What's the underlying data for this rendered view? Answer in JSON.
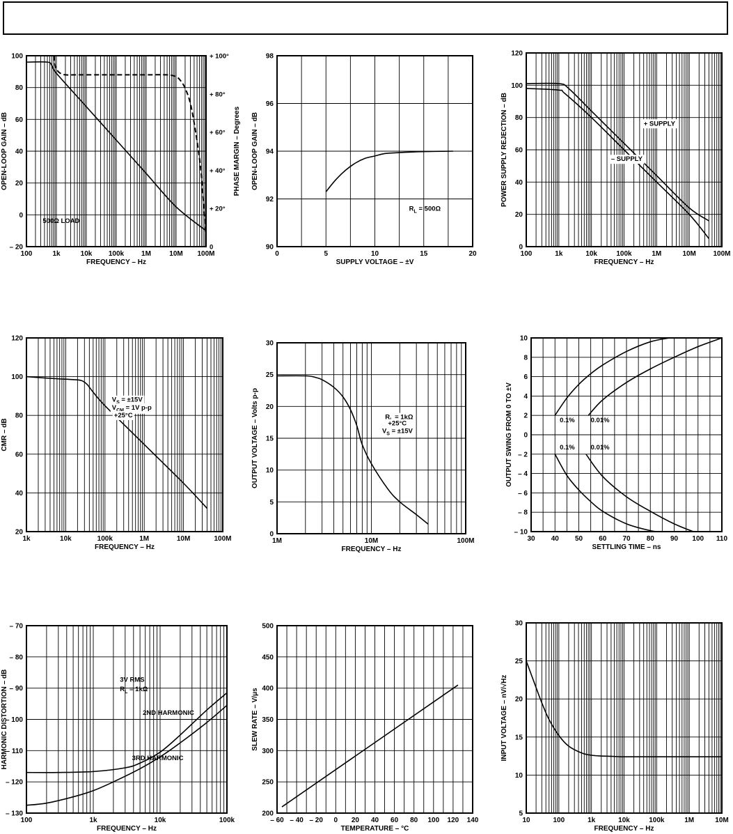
{
  "chart_data": [
    {
      "type": "line",
      "xscale": "log",
      "xlim": [
        100,
        100000000
      ],
      "ylim": [
        -20,
        100
      ],
      "y2lim": [
        0,
        100
      ],
      "xticks": [
        {
          "v": 100,
          "t": "100"
        },
        {
          "v": 1000,
          "t": "1k"
        },
        {
          "v": 10000,
          "t": "10k"
        },
        {
          "v": 100000,
          "t": "100k"
        },
        {
          "v": 1000000,
          "t": "1M"
        },
        {
          "v": 10000000,
          "t": "10M"
        },
        {
          "v": 100000000,
          "t": "100M"
        }
      ],
      "yticks": [
        {
          "v": -20,
          "t": "– 20"
        },
        {
          "v": 0,
          "t": "0"
        },
        {
          "v": 20,
          "t": "20"
        },
        {
          "v": 40,
          "t": "40"
        },
        {
          "v": 60,
          "t": "60"
        },
        {
          "v": 80,
          "t": "80"
        },
        {
          "v": 100,
          "t": "100"
        }
      ],
      "y2ticks": [
        {
          "v": 0,
          "t": "0"
        },
        {
          "v": 20,
          "t": "+ 20°"
        },
        {
          "v": 40,
          "t": "+ 40°"
        },
        {
          "v": 60,
          "t": "+ 60°"
        },
        {
          "v": 80,
          "t": "+ 80°"
        },
        {
          "v": 100,
          "t": "+ 100°"
        }
      ],
      "xlabel": "FREQUENCY – Hz",
      "ylabel": "OPEN-LOOP GAIN – dB",
      "y2label": "PHASE MARGIN – Degrees",
      "series": [
        {
          "style": "solid",
          "x": [
            100,
            500,
            700,
            1000,
            10000,
            100000,
            1000000,
            10000000,
            100000000
          ],
          "y": [
            96,
            96,
            94,
            89,
            68,
            47,
            26,
            5,
            -10
          ]
        },
        {
          "style": "dashed",
          "axis": "y2",
          "x": [
            820,
            900,
            1000,
            1300,
            2000,
            5000,
            100000,
            1000000,
            5000000,
            10000000,
            14000000,
            20000000,
            30000000,
            45000000,
            65000000,
            80000000,
            100000000
          ],
          "y": [
            100,
            95,
            93,
            91,
            90,
            90,
            90,
            90,
            90,
            89,
            87,
            83,
            75,
            60,
            42,
            25,
            7
          ]
        }
      ],
      "annotations": [
        {
          "text": "500Ω LOAD",
          "x": 350,
          "y": -5
        }
      ]
    },
    {
      "type": "line",
      "xscale": "linear",
      "xlim": [
        0,
        20
      ],
      "ylim": [
        90,
        98
      ],
      "xticks": [
        {
          "v": 0,
          "t": "0"
        },
        {
          "v": 5,
          "t": "5"
        },
        {
          "v": 10,
          "t": "10"
        },
        {
          "v": 15,
          "t": "15"
        },
        {
          "v": 20,
          "t": "20"
        }
      ],
      "yticks": [
        {
          "v": 90,
          "t": "90"
        },
        {
          "v": 92,
          "t": "92"
        },
        {
          "v": 94,
          "t": "94"
        },
        {
          "v": 96,
          "t": "96"
        },
        {
          "v": 98,
          "t": "98"
        }
      ],
      "xlabel": "SUPPLY VOLTAGE – ±V",
      "ylabel": "OPEN-LOOP GAIN – dB",
      "series": [
        {
          "style": "solid",
          "x": [
            5,
            6,
            7,
            8,
            9,
            10,
            11,
            12,
            14,
            16,
            18
          ],
          "y": [
            92.3,
            92.8,
            93.2,
            93.5,
            93.7,
            93.8,
            93.9,
            93.93,
            93.97,
            93.99,
            94.0
          ]
        }
      ],
      "annotations": [
        {
          "text": "R",
          "sub": "L",
          "after": " = 500Ω",
          "x": 13.5,
          "y": 91.5
        }
      ]
    },
    {
      "type": "line",
      "xscale": "log",
      "xlim": [
        100,
        100000000
      ],
      "ylim": [
        0,
        120
      ],
      "xticks": [
        {
          "v": 100,
          "t": "100"
        },
        {
          "v": 1000,
          "t": "1k"
        },
        {
          "v": 10000,
          "t": "10k"
        },
        {
          "v": 100000,
          "t": "100k"
        },
        {
          "v": 1000000,
          "t": "1M"
        },
        {
          "v": 10000000,
          "t": "10M"
        },
        {
          "v": 100000000,
          "t": "100M"
        }
      ],
      "yticks": [
        {
          "v": 0,
          "t": "0"
        },
        {
          "v": 20,
          "t": "20"
        },
        {
          "v": 40,
          "t": "40"
        },
        {
          "v": 60,
          "t": "60"
        },
        {
          "v": 80,
          "t": "80"
        },
        {
          "v": 100,
          "t": "100"
        },
        {
          "v": 120,
          "t": "120"
        }
      ],
      "xlabel": "FREQUENCY – Hz",
      "ylabel": "POWER SUPPLY REJECTION – dB",
      "series": [
        {
          "style": "solid",
          "x": [
            100,
            1000,
            2000,
            10000,
            100000,
            1000000,
            10000000,
            40000000
          ],
          "y": [
            101,
            101,
            98,
            84,
            64,
            44,
            24,
            16
          ]
        },
        {
          "style": "solid",
          "x": [
            100,
            1000,
            1500,
            10000,
            100000,
            1000000,
            10000000,
            40000000
          ],
          "y": [
            98,
            97,
            95,
            80,
            60,
            40,
            20,
            5
          ]
        }
      ],
      "annotations": [
        {
          "text": "+ SUPPLY",
          "x": 400000,
          "y": 75,
          "bg": true
        },
        {
          "text": "– SUPPLY",
          "x": 40000,
          "y": 53,
          "bg": true
        }
      ]
    },
    {
      "type": "line",
      "xscale": "log",
      "xlim": [
        1000,
        100000000
      ],
      "ylim": [
        20,
        120
      ],
      "xticks": [
        {
          "v": 1000,
          "t": "1k"
        },
        {
          "v": 10000,
          "t": "10k"
        },
        {
          "v": 100000,
          "t": "100k"
        },
        {
          "v": 1000000,
          "t": "1M"
        },
        {
          "v": 10000000,
          "t": "10M"
        },
        {
          "v": 100000000,
          "t": "100M"
        }
      ],
      "yticks": [
        {
          "v": 20,
          "t": "20"
        },
        {
          "v": 40,
          "t": "40"
        },
        {
          "v": 60,
          "t": "60"
        },
        {
          "v": 80,
          "t": "80"
        },
        {
          "v": 100,
          "t": "100"
        },
        {
          "v": 120,
          "t": "120"
        }
      ],
      "xlabel": "FREQUENCY – Hz",
      "ylabel": "CMR – dB",
      "series": [
        {
          "style": "solid",
          "x": [
            1000,
            5000,
            15000,
            25000,
            35000,
            50000,
            100000,
            1000000,
            10000000,
            40000000
          ],
          "y": [
            100,
            99,
            98.5,
            98,
            96,
            92,
            85,
            65,
            45,
            32
          ]
        }
      ],
      "annotations": [
        {
          "text": "V",
          "sub": "S",
          "after": " = ±15V",
          "x": 150000,
          "y": 87,
          "bg": true
        },
        {
          "text": "V",
          "sub": "CM",
          "after": " = 1V p-p",
          "x": 150000,
          "y": 83,
          "bg": true
        },
        {
          "text": "+25°C",
          "x": 170000,
          "y": 79,
          "bg": true
        }
      ]
    },
    {
      "type": "line",
      "xscale": "log",
      "xlim": [
        1000000,
        100000000
      ],
      "ylim": [
        0,
        30
      ],
      "xticks": [
        {
          "v": 1000000,
          "t": "1M"
        },
        {
          "v": 10000000,
          "t": "10M"
        },
        {
          "v": 100000000,
          "t": "100M"
        }
      ],
      "yticks": [
        {
          "v": 0,
          "t": "0"
        },
        {
          "v": 5,
          "t": "5"
        },
        {
          "v": 10,
          "t": "10"
        },
        {
          "v": 15,
          "t": "15"
        },
        {
          "v": 20,
          "t": "20"
        },
        {
          "v": 25,
          "t": "25"
        },
        {
          "v": 30,
          "t": "30"
        }
      ],
      "xlabel": "FREQUENCY – Hz",
      "ylabel": "OUTPUT VOLTAGE – Volts p-p",
      "series": [
        {
          "style": "solid",
          "x": [
            1000000,
            2000000,
            2500000,
            3000000,
            4000000,
            5000000,
            6000000,
            7000000,
            8000000,
            10000000,
            15000000,
            20000000,
            30000000,
            40000000
          ],
          "y": [
            24.8,
            24.8,
            24.6,
            24.2,
            23,
            21.5,
            19.5,
            17,
            14,
            11,
            7,
            5,
            3,
            1.5
          ]
        }
      ],
      "annotations": [
        {
          "text": "R",
          "sub": "L",
          "after": " = 1kΩ",
          "x": 14000000,
          "y": 18,
          "bg": true
        },
        {
          "text": "+25°C",
          "x": 15000000,
          "y": 17,
          "bg": true
        },
        {
          "text": "V",
          "sub": "S",
          "after": " = ±15V",
          "x": 13000000,
          "y": 15.8,
          "bg": true
        }
      ]
    },
    {
      "type": "line",
      "xscale": "linear",
      "xlim": [
        30,
        110
      ],
      "ylim": [
        -10,
        10
      ],
      "xticks": [
        {
          "v": 30,
          "t": "30"
        },
        {
          "v": 40,
          "t": "40"
        },
        {
          "v": 50,
          "t": "50"
        },
        {
          "v": 60,
          "t": "60"
        },
        {
          "v": 70,
          "t": "70"
        },
        {
          "v": 80,
          "t": "80"
        },
        {
          "v": 90,
          "t": "90"
        },
        {
          "v": 100,
          "t": "100"
        },
        {
          "v": 110,
          "t": "110"
        }
      ],
      "yticks": [
        {
          "v": -10,
          "t": "– 10"
        },
        {
          "v": -8,
          "t": "– 8"
        },
        {
          "v": -6,
          "t": "– 6"
        },
        {
          "v": -4,
          "t": "– 4"
        },
        {
          "v": -2,
          "t": "– 2"
        },
        {
          "v": 0,
          "t": "0"
        },
        {
          "v": 2,
          "t": "2"
        },
        {
          "v": 4,
          "t": "4"
        },
        {
          "v": 6,
          "t": "6"
        },
        {
          "v": 8,
          "t": "8"
        },
        {
          "v": 10,
          "t": "10"
        }
      ],
      "xlabel": "SETTLING TIME – ns",
      "ylabel": "OUTPUT SWING FROM 0 TO ±V",
      "series": [
        {
          "style": "solid",
          "x": [
            40,
            45,
            50,
            55,
            60,
            70,
            80,
            88
          ],
          "y": [
            2,
            3.8,
            5.2,
            6.3,
            7.2,
            8.6,
            9.6,
            10
          ]
        },
        {
          "style": "solid",
          "x": [
            54,
            60,
            70,
            80,
            90,
            100,
            110
          ],
          "y": [
            2,
            3.6,
            5.4,
            6.8,
            8,
            9.1,
            10
          ]
        },
        {
          "style": "solid",
          "x": [
            40,
            45,
            50,
            55,
            60,
            70,
            80,
            84
          ],
          "y": [
            -2,
            -4.2,
            -5.7,
            -6.9,
            -7.9,
            -9.2,
            -9.9,
            -10
          ]
        },
        {
          "style": "solid",
          "x": [
            53,
            60,
            70,
            80,
            90,
            98
          ],
          "y": [
            -2,
            -4.3,
            -6.4,
            -7.9,
            -9.2,
            -10
          ]
        }
      ],
      "annotations": [
        {
          "text": "0.1%",
          "x": 42,
          "y": 1.3
        },
        {
          "text": "0.01%",
          "x": 55,
          "y": 1.3
        },
        {
          "text": "0.1%",
          "x": 42,
          "y": -1.5
        },
        {
          "text": "0.01%",
          "x": 55,
          "y": -1.5
        }
      ]
    },
    {
      "type": "line",
      "xscale": "log",
      "xlim": [
        100,
        100000
      ],
      "ylim": [
        -130,
        -70
      ],
      "xticks": [
        {
          "v": 100,
          "t": "100"
        },
        {
          "v": 1000,
          "t": "1k"
        },
        {
          "v": 10000,
          "t": "10k"
        },
        {
          "v": 100000,
          "t": "100k"
        }
      ],
      "yticks": [
        {
          "v": -130,
          "t": "– 130"
        },
        {
          "v": -120,
          "t": "– 120"
        },
        {
          "v": -110,
          "t": "– 110"
        },
        {
          "v": -100,
          "t": "– 100"
        },
        {
          "v": -90,
          "t": "– 90"
        },
        {
          "v": -80,
          "t": "– 80"
        },
        {
          "v": -70,
          "t": "– 70"
        }
      ],
      "xlabel": "FREQUENCY – Hz",
      "ylabel": "HARMONIC DISTORTION – dB",
      "series": [
        {
          "style": "solid",
          "x": [
            100,
            300,
            1000,
            3000,
            5000,
            10000,
            20000,
            50000,
            100000
          ],
          "y": [
            -117,
            -117,
            -116.7,
            -115.5,
            -114,
            -110.5,
            -105,
            -97,
            -91.5
          ]
        },
        {
          "style": "solid",
          "x": [
            100,
            200,
            500,
            1000,
            2000,
            5000,
            10000,
            20000,
            50000,
            100000
          ],
          "y": [
            -127.5,
            -126.8,
            -124.8,
            -122.8,
            -120,
            -115.8,
            -112,
            -107.5,
            -101,
            -95.5
          ]
        }
      ],
      "annotations": [
        {
          "text": "3V RMS",
          "x": 2500,
          "y": -88
        },
        {
          "text": "R",
          "sub": "L",
          "after": " = 1kΩ",
          "x": 2500,
          "y": -91
        },
        {
          "text": "2ND HARMONIC",
          "x": 5500,
          "y": -98.5
        },
        {
          "text": "3RD HARMONIC",
          "x": 3800,
          "y": -113
        },
        {
          "text": "",
          "x": 0,
          "y": 0,
          "skip": true
        }
      ]
    },
    {
      "type": "line",
      "xscale": "linear",
      "xlim": [
        -60,
        140
      ],
      "ylim": [
        200,
        500
      ],
      "xticks": [
        {
          "v": -60,
          "t": "– 60"
        },
        {
          "v": -40,
          "t": "– 40"
        },
        {
          "v": -20,
          "t": "– 20"
        },
        {
          "v": 0,
          "t": "0"
        },
        {
          "v": 20,
          "t": "20"
        },
        {
          "v": 40,
          "t": "40"
        },
        {
          "v": 60,
          "t": "60"
        },
        {
          "v": 80,
          "t": "80"
        },
        {
          "v": 100,
          "t": "100"
        },
        {
          "v": 120,
          "t": "120"
        },
        {
          "v": 140,
          "t": "140"
        }
      ],
      "yticks": [
        {
          "v": 200,
          "t": "200"
        },
        {
          "v": 250,
          "t": "250"
        },
        {
          "v": 300,
          "t": "300"
        },
        {
          "v": 350,
          "t": "350"
        },
        {
          "v": 400,
          "t": "400"
        },
        {
          "v": 450,
          "t": "450"
        },
        {
          "v": 500,
          "t": "500"
        }
      ],
      "xlabel": "TEMPERATURE – °C",
      "ylabel": "SLEW RATE – V/μs",
      "series": [
        {
          "style": "solid",
          "x": [
            -55,
            125
          ],
          "y": [
            210,
            405
          ]
        }
      ],
      "annotations": []
    },
    {
      "type": "line",
      "xscale": "log",
      "xlim": [
        10,
        10000000
      ],
      "ylim": [
        5,
        30
      ],
      "xticks": [
        {
          "v": 10,
          "t": "10"
        },
        {
          "v": 100,
          "t": "100"
        },
        {
          "v": 1000,
          "t": "1k"
        },
        {
          "v": 10000,
          "t": "10k"
        },
        {
          "v": 100000,
          "t": "100k"
        },
        {
          "v": 1000000,
          "t": "1M"
        },
        {
          "v": 10000000,
          "t": "10M"
        }
      ],
      "yticks": [
        {
          "v": 5,
          "t": "5"
        },
        {
          "v": 10,
          "t": "10"
        },
        {
          "v": 15,
          "t": "15"
        },
        {
          "v": 20,
          "t": "20"
        },
        {
          "v": 25,
          "t": "25"
        },
        {
          "v": 30,
          "t": "30"
        }
      ],
      "xlabel": "FREQUENCY – Hz",
      "ylabel": "INPUT VOLTAGE – nV/√Hz",
      "series": [
        {
          "style": "solid",
          "x": [
            10,
            20,
            30,
            50,
            100,
            200,
            500,
            1000,
            2000,
            5000,
            10000,
            100000,
            1000000,
            10000000
          ],
          "y": [
            25,
            21.5,
            19.5,
            17.3,
            15.2,
            13.8,
            12.9,
            12.6,
            12.5,
            12.45,
            12.4,
            12.4,
            12.4,
            12.4
          ]
        }
      ],
      "annotations": []
    }
  ]
}
